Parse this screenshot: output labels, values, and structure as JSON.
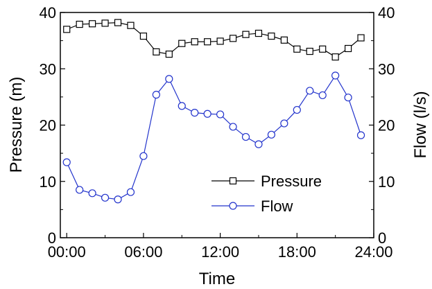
{
  "chart_data": {
    "type": "line",
    "xlabel": "Time",
    "ylabel_left": "Pressure (m)",
    "ylabel_right": "Flow (l/s)",
    "x_ticks": [
      "00:00",
      "06:00",
      "12:00",
      "18:00",
      "24:00"
    ],
    "x_tick_hours": [
      0,
      6,
      12,
      18,
      24
    ],
    "y_ticks": [
      "0",
      "10",
      "20",
      "30",
      "40"
    ],
    "y_tick_values": [
      0,
      10,
      20,
      30,
      40
    ],
    "xlim": [
      -0.5,
      24
    ],
    "ylim": [
      0,
      40
    ],
    "y2lim": [
      0,
      40
    ],
    "grid": false,
    "legend_position": "lower-right",
    "x_hours": [
      0,
      1,
      2,
      3,
      4,
      5,
      6,
      7,
      8,
      9,
      10,
      11,
      12,
      13,
      14,
      15,
      16,
      17,
      18,
      19,
      20,
      21,
      22,
      23
    ],
    "series": [
      {
        "name": "Pressure",
        "axis": "left",
        "marker": "square",
        "color": "#000000",
        "values": [
          37.0,
          37.9,
          38.0,
          38.1,
          38.2,
          37.7,
          35.8,
          33.0,
          32.6,
          34.5,
          34.8,
          34.8,
          34.9,
          35.4,
          36.1,
          36.3,
          35.8,
          35.1,
          33.5,
          33.1,
          33.5,
          32.1,
          33.6,
          35.5
        ]
      },
      {
        "name": "Flow",
        "axis": "right",
        "marker": "circle",
        "color": "#2233cc",
        "values": [
          13.4,
          8.5,
          7.9,
          7.1,
          6.8,
          8.1,
          14.5,
          25.4,
          28.2,
          23.4,
          22.2,
          22.0,
          21.9,
          19.7,
          17.9,
          16.6,
          18.3,
          20.3,
          22.7,
          26.1,
          25.3,
          28.8,
          24.9,
          18.2
        ]
      }
    ]
  }
}
